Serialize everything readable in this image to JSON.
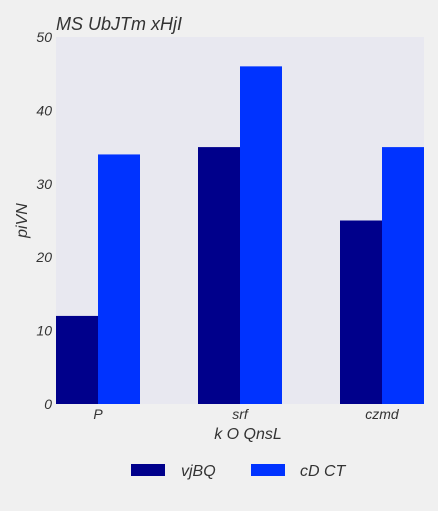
{
  "chart_data": {
    "type": "bar",
    "title": "MS UbJTm xHjI",
    "xlabel": "k O QnsL",
    "ylabel": "piVN",
    "categories": [
      "P",
      "srf",
      "czmd"
    ],
    "series": [
      {
        "name": "vjBQ",
        "values": [
          12,
          35,
          25
        ],
        "color": "#00008b"
      },
      {
        "name": "cD CT",
        "values": [
          34,
          46,
          35
        ],
        "color": "#0033ff"
      }
    ],
    "ylim": [
      0,
      50
    ],
    "yticks": [
      0,
      10,
      20,
      30,
      40,
      50
    ],
    "grid": false,
    "legend": "bottom-center",
    "plot_background": "#e8e8f0",
    "page_background": "#f0f0f0"
  }
}
